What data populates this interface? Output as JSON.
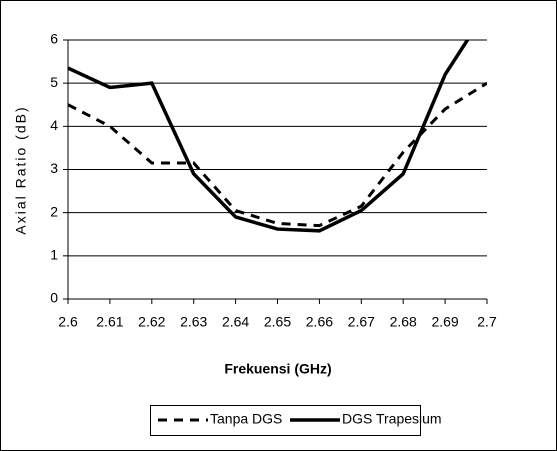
{
  "chart_data": {
    "type": "line",
    "x_label": "Frekuensi (GHz)",
    "y_label": "Axial Ratio (dB)",
    "x": [
      2.6,
      2.61,
      2.62,
      2.63,
      2.64,
      2.65,
      2.66,
      2.67,
      2.68,
      2.69,
      2.7
    ],
    "series": [
      {
        "name": "Tanpa DGS",
        "color": "#000000",
        "dash": true,
        "values": [
          4.5,
          4.0,
          3.15,
          3.15,
          2.05,
          1.75,
          1.7,
          2.15,
          3.4,
          4.4,
          5.0
        ]
      },
      {
        "name": "DGS Trapesium",
        "color": "#000000",
        "dash": false,
        "values": [
          5.35,
          4.9,
          5.0,
          2.9,
          1.9,
          1.62,
          1.58,
          2.05,
          2.9,
          5.2,
          6.7
        ]
      }
    ],
    "xlim": [
      2.6,
      2.7
    ],
    "xticks": [
      2.6,
      2.61,
      2.62,
      2.63,
      2.64,
      2.65,
      2.66,
      2.67,
      2.68,
      2.69,
      2.7
    ],
    "ylim": [
      0,
      6
    ],
    "yticks": [
      0,
      1,
      2,
      3,
      4,
      5,
      6
    ],
    "grid": true,
    "legend": "bottom"
  }
}
